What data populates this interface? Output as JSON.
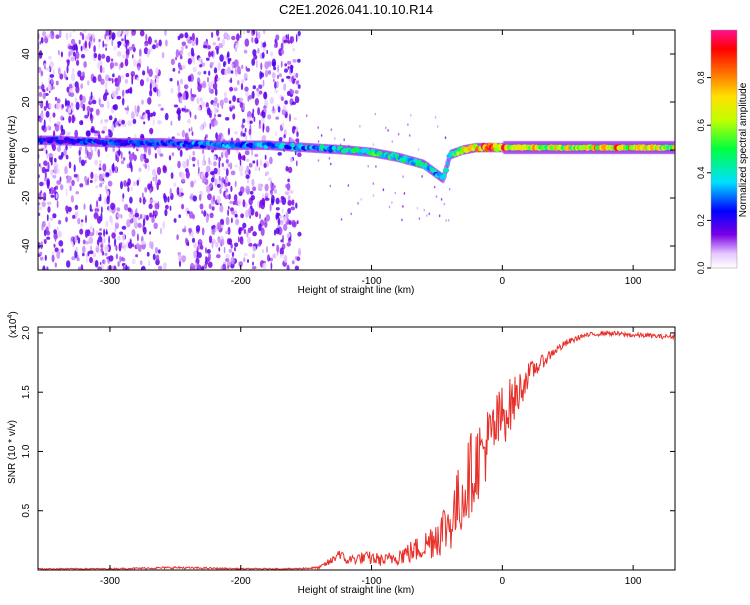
{
  "chart_data": [
    {
      "type": "heatmap",
      "title": "C2E1.2026.041.10.10.R14",
      "xlabel": "Height of straight line (km)",
      "ylabel": "Frequency (Hz)",
      "xlim": [
        -355,
        132
      ],
      "ylim": [
        -50,
        50
      ],
      "xticks": [
        -300,
        -200,
        -100,
        0,
        100
      ],
      "xtick_labels": [
        "-300",
        "-200",
        "-100",
        "0",
        "100"
      ],
      "yticks": [
        -40,
        -20,
        0,
        20,
        40
      ],
      "ytick_labels": [
        "-40",
        "-20",
        "0",
        "20",
        "40"
      ],
      "colorbar": {
        "label": "Normalized spectral amplitude",
        "range": [
          0,
          1
        ],
        "ticks": [
          0.0,
          0.2,
          0.4,
          0.6,
          0.8
        ],
        "tick_labels": [
          "0.0",
          "0.2",
          "0.4",
          "0.6",
          "0.8"
        ]
      },
      "noise_region_x": [
        -355,
        -155
      ],
      "ridge": [
        {
          "x": -340,
          "f": 4,
          "a": 0.25
        },
        {
          "x": -300,
          "f": 3,
          "a": 0.3
        },
        {
          "x": -260,
          "f": 3,
          "a": 0.3
        },
        {
          "x": -220,
          "f": 2,
          "a": 0.35
        },
        {
          "x": -180,
          "f": 2,
          "a": 0.35
        },
        {
          "x": -150,
          "f": 1,
          "a": 0.4
        },
        {
          "x": -120,
          "f": 0,
          "a": 0.45
        },
        {
          "x": -100,
          "f": -1,
          "a": 0.5
        },
        {
          "x": -80,
          "f": -3,
          "a": 0.5
        },
        {
          "x": -60,
          "f": -6,
          "a": 0.45
        },
        {
          "x": -50,
          "f": -10,
          "a": 0.4
        },
        {
          "x": -45,
          "f": -12,
          "a": 0.35
        },
        {
          "x": -40,
          "f": -2,
          "a": 0.5
        },
        {
          "x": -30,
          "f": 0,
          "a": 0.7
        },
        {
          "x": -20,
          "f": 1,
          "a": 0.85
        },
        {
          "x": -10,
          "f": 1,
          "a": 0.95
        },
        {
          "x": 0,
          "f": 1,
          "a": 0.9
        },
        {
          "x": 20,
          "f": 1,
          "a": 0.75
        },
        {
          "x": 50,
          "f": 1,
          "a": 0.7
        },
        {
          "x": 80,
          "f": 1,
          "a": 0.85
        },
        {
          "x": 100,
          "f": 1,
          "a": 0.8
        },
        {
          "x": 132,
          "f": 1,
          "a": 0.7
        }
      ]
    },
    {
      "type": "line",
      "xlabel": "Height of straight line (km)",
      "ylabel": "SNR (10 * v/v)",
      "scale_note": "(x10",
      "scale_exp": "4",
      "scale_close": ")",
      "xlim": [
        -355,
        132
      ],
      "ylim": [
        0,
        2.05
      ],
      "xticks": [
        -300,
        -200,
        -100,
        0,
        100
      ],
      "xtick_labels": [
        "-300",
        "-200",
        "-100",
        "0",
        "100"
      ],
      "yticks": [
        0.5,
        1.0,
        1.5,
        2.0
      ],
      "ytick_labels": [
        "0.5",
        "1.0",
        "1.5",
        "2.0"
      ],
      "color": "#e8302a",
      "series": [
        {
          "name": "SNR",
          "x": [
            -355,
            -300,
            -250,
            -200,
            -160,
            -140,
            -130,
            -125,
            -120,
            -110,
            -100,
            -90,
            -80,
            -70,
            -60,
            -50,
            -40,
            -30,
            -25,
            -20,
            -10,
            0,
            10,
            20,
            30,
            40,
            50,
            60,
            70,
            80,
            90,
            100,
            110,
            120,
            132
          ],
          "y": [
            0.01,
            0.01,
            0.02,
            0.01,
            0.01,
            0.02,
            0.08,
            0.15,
            0.08,
            0.1,
            0.1,
            0.08,
            0.12,
            0.15,
            0.2,
            0.3,
            0.4,
            0.65,
            0.8,
            0.9,
            1.1,
            1.3,
            1.45,
            1.65,
            1.75,
            1.85,
            1.92,
            1.97,
            1.99,
            2.0,
            1.99,
            1.98,
            1.98,
            1.97,
            1.97
          ],
          "noise": [
            0.005,
            0.005,
            0.01,
            0.005,
            0.005,
            0.01,
            0.04,
            0.05,
            0.04,
            0.05,
            0.06,
            0.05,
            0.08,
            0.1,
            0.12,
            0.2,
            0.25,
            0.35,
            0.35,
            0.35,
            0.3,
            0.28,
            0.2,
            0.1,
            0.06,
            0.04,
            0.03,
            0.02,
            0.02,
            0.02,
            0.02,
            0.02,
            0.02,
            0.02,
            0.02
          ]
        }
      ]
    }
  ]
}
